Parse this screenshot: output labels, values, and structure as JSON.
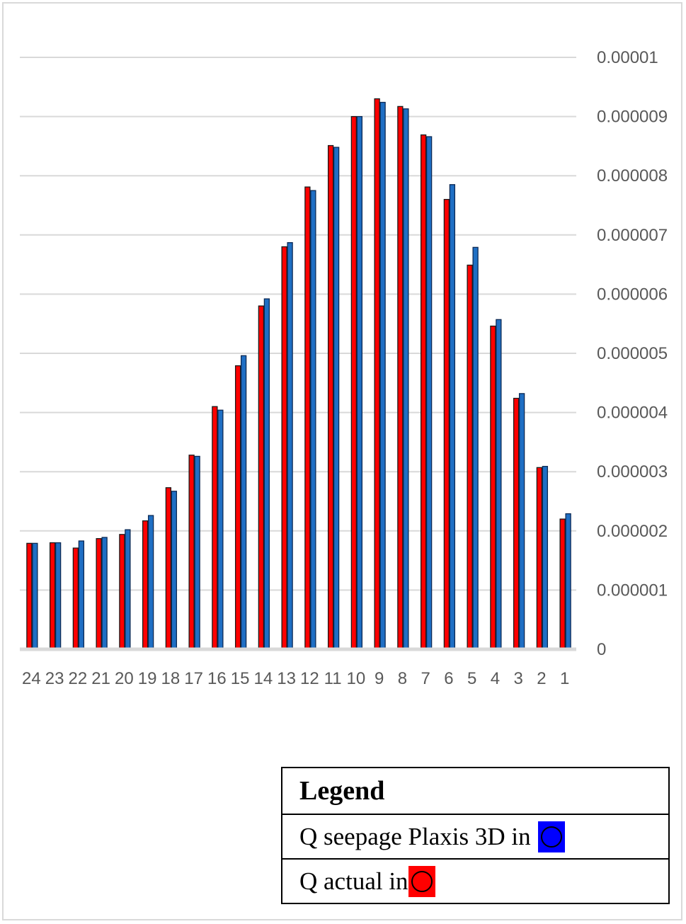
{
  "chart_data": {
    "type": "bar",
    "categories": [
      "24",
      "23",
      "22",
      "21",
      "20",
      "19",
      "18",
      "17",
      "16",
      "15",
      "14",
      "13",
      "12",
      "11",
      "10",
      "9",
      "8",
      "7",
      "6",
      "5",
      "4",
      "3",
      "2",
      "1"
    ],
    "series": [
      {
        "name": "Q actual in",
        "color": "#ff0000",
        "values": [
          1.79e-06,
          1.8e-06,
          1.71e-06,
          1.87e-06,
          1.94e-06,
          2.17e-06,
          2.73e-06,
          3.28e-06,
          4.1e-06,
          4.79e-06,
          5.8e-06,
          6.8e-06,
          7.81e-06,
          8.51e-06,
          9e-06,
          9.3e-06,
          9.17e-06,
          8.69e-06,
          7.6e-06,
          6.49e-06,
          5.46e-06,
          4.24e-06,
          3.07e-06,
          2.2e-06
        ]
      },
      {
        "name": "Q seepage Plaxis 3D in",
        "color": "#0000ff",
        "values": [
          1.79e-06,
          1.8e-06,
          1.83e-06,
          1.89e-06,
          2.02e-06,
          2.26e-06,
          2.67e-06,
          3.26e-06,
          4.04e-06,
          4.96e-06,
          5.92e-06,
          6.87e-06,
          7.75e-06,
          8.48e-06,
          9e-06,
          9.24e-06,
          9.13e-06,
          8.66e-06,
          7.85e-06,
          6.79e-06,
          5.57e-06,
          4.32e-06,
          3.09e-06,
          2.29e-06
        ]
      }
    ],
    "y_ticks": [
      "0",
      "0.000001",
      "0.000002",
      "0.000003",
      "0.000004",
      "0.000005",
      "0.000006",
      "0.000007",
      "0.000008",
      "0.000009",
      "0.00001"
    ],
    "ylim": [
      0,
      1e-05
    ],
    "grid": true,
    "y_axis_side": "right",
    "title": "",
    "xlabel": "",
    "ylabel": ""
  },
  "legend": {
    "title": "Legend",
    "entries": [
      {
        "label": "Q seepage Plaxis 3D in",
        "swatch_color": "#0000ff"
      },
      {
        "label": "Q actual in",
        "swatch_color": "#ff0000"
      }
    ]
  }
}
